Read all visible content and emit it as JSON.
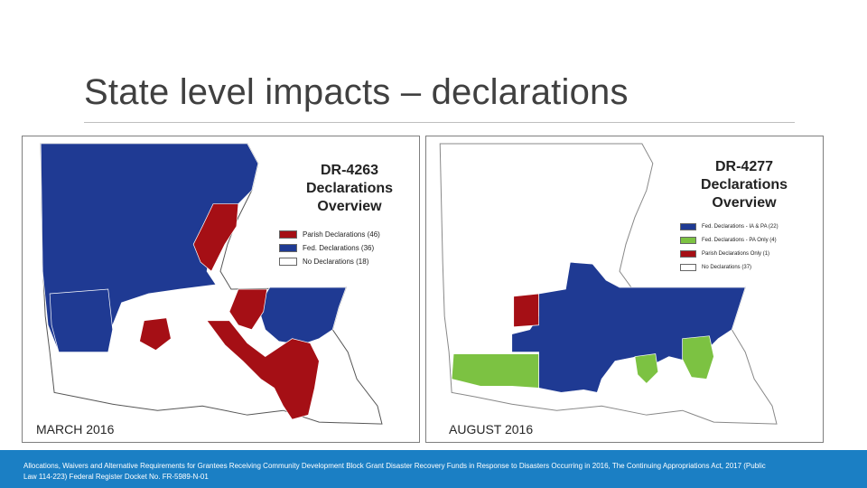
{
  "slide": {
    "title": "State level impacts – declarations",
    "footer": "Allocations, Waivers and Alternative Requirements for Grantees Receiving Community Development Block Grant Disaster Recovery Funds in Response to Disasters Occurring in 2016, The Continuing Appropriations Act, 2017 (Public Law 114-223) Federal Register Docket No. FR-5989-N-01"
  },
  "maps": [
    {
      "panel_label": "MARCH 2016",
      "title_lines": [
        "DR-4263",
        "Declarations",
        "Overview"
      ],
      "legend": [
        {
          "label": "Parish Declarations (46)",
          "color": "#a50f15"
        },
        {
          "label": "Fed. Declarations (36)",
          "color": "#1f3a93"
        },
        {
          "label": "No Declarations (18)",
          "color": "#ffffff"
        }
      ]
    },
    {
      "panel_label": "AUGUST 2016",
      "title_lines": [
        "DR-4277",
        "Declarations",
        "Overview"
      ],
      "legend": [
        {
          "label": "Fed. Declarations - IA & PA (22)",
          "color": "#1f3a93"
        },
        {
          "label": "Fed. Declarations - PA Only (4)",
          "color": "#7cc242"
        },
        {
          "label": "Parish Declarations Only (1)",
          "color": "#a50f15"
        },
        {
          "label": "No Declarations (37)",
          "color": "#ffffff"
        }
      ]
    }
  ],
  "colors": {
    "accent_bar": "#1b7fc4",
    "federal": "#1f3a93",
    "parish": "#a50f15",
    "pa_only": "#7cc242",
    "none": "#ffffff"
  }
}
